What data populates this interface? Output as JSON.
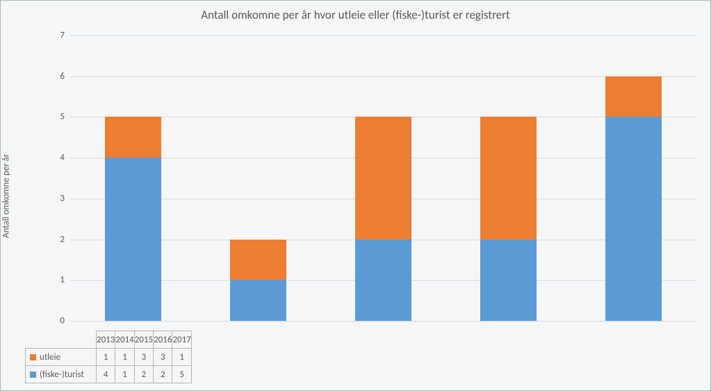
{
  "chart": {
    "type": "stacked-bar",
    "title": "Antall omkomne per år hvor utleie eller (fiske-)turist er registrert",
    "title_fontsize": 17,
    "title_color": "#595959",
    "ylabel": "Antall omkomne per år",
    "ylabel_fontsize": 13,
    "background_color": "#f4f6f8",
    "border_color": "#b4b4b4",
    "grid_color": "#d9d9d9",
    "text_color": "#595959",
    "y_min": 0,
    "y_max": 7,
    "y_tick_step": 1,
    "y_ticks": [
      0,
      1,
      2,
      3,
      4,
      5,
      6,
      7
    ],
    "categories": [
      "2013",
      "2014",
      "2015",
      "2016",
      "2017"
    ],
    "bar_width_ratio": 0.45,
    "series": [
      {
        "name": "(fiske-)turist",
        "color": "#5b9bd5",
        "values": [
          4,
          1,
          2,
          2,
          5
        ],
        "stack_order": 0
      },
      {
        "name": "utleie",
        "color": "#ed7d31",
        "values": [
          1,
          1,
          3,
          3,
          1
        ],
        "stack_order": 1
      }
    ],
    "table_row_order": [
      "utleie",
      "(fiske-)turist"
    ],
    "legend_swatch_size": 9
  }
}
